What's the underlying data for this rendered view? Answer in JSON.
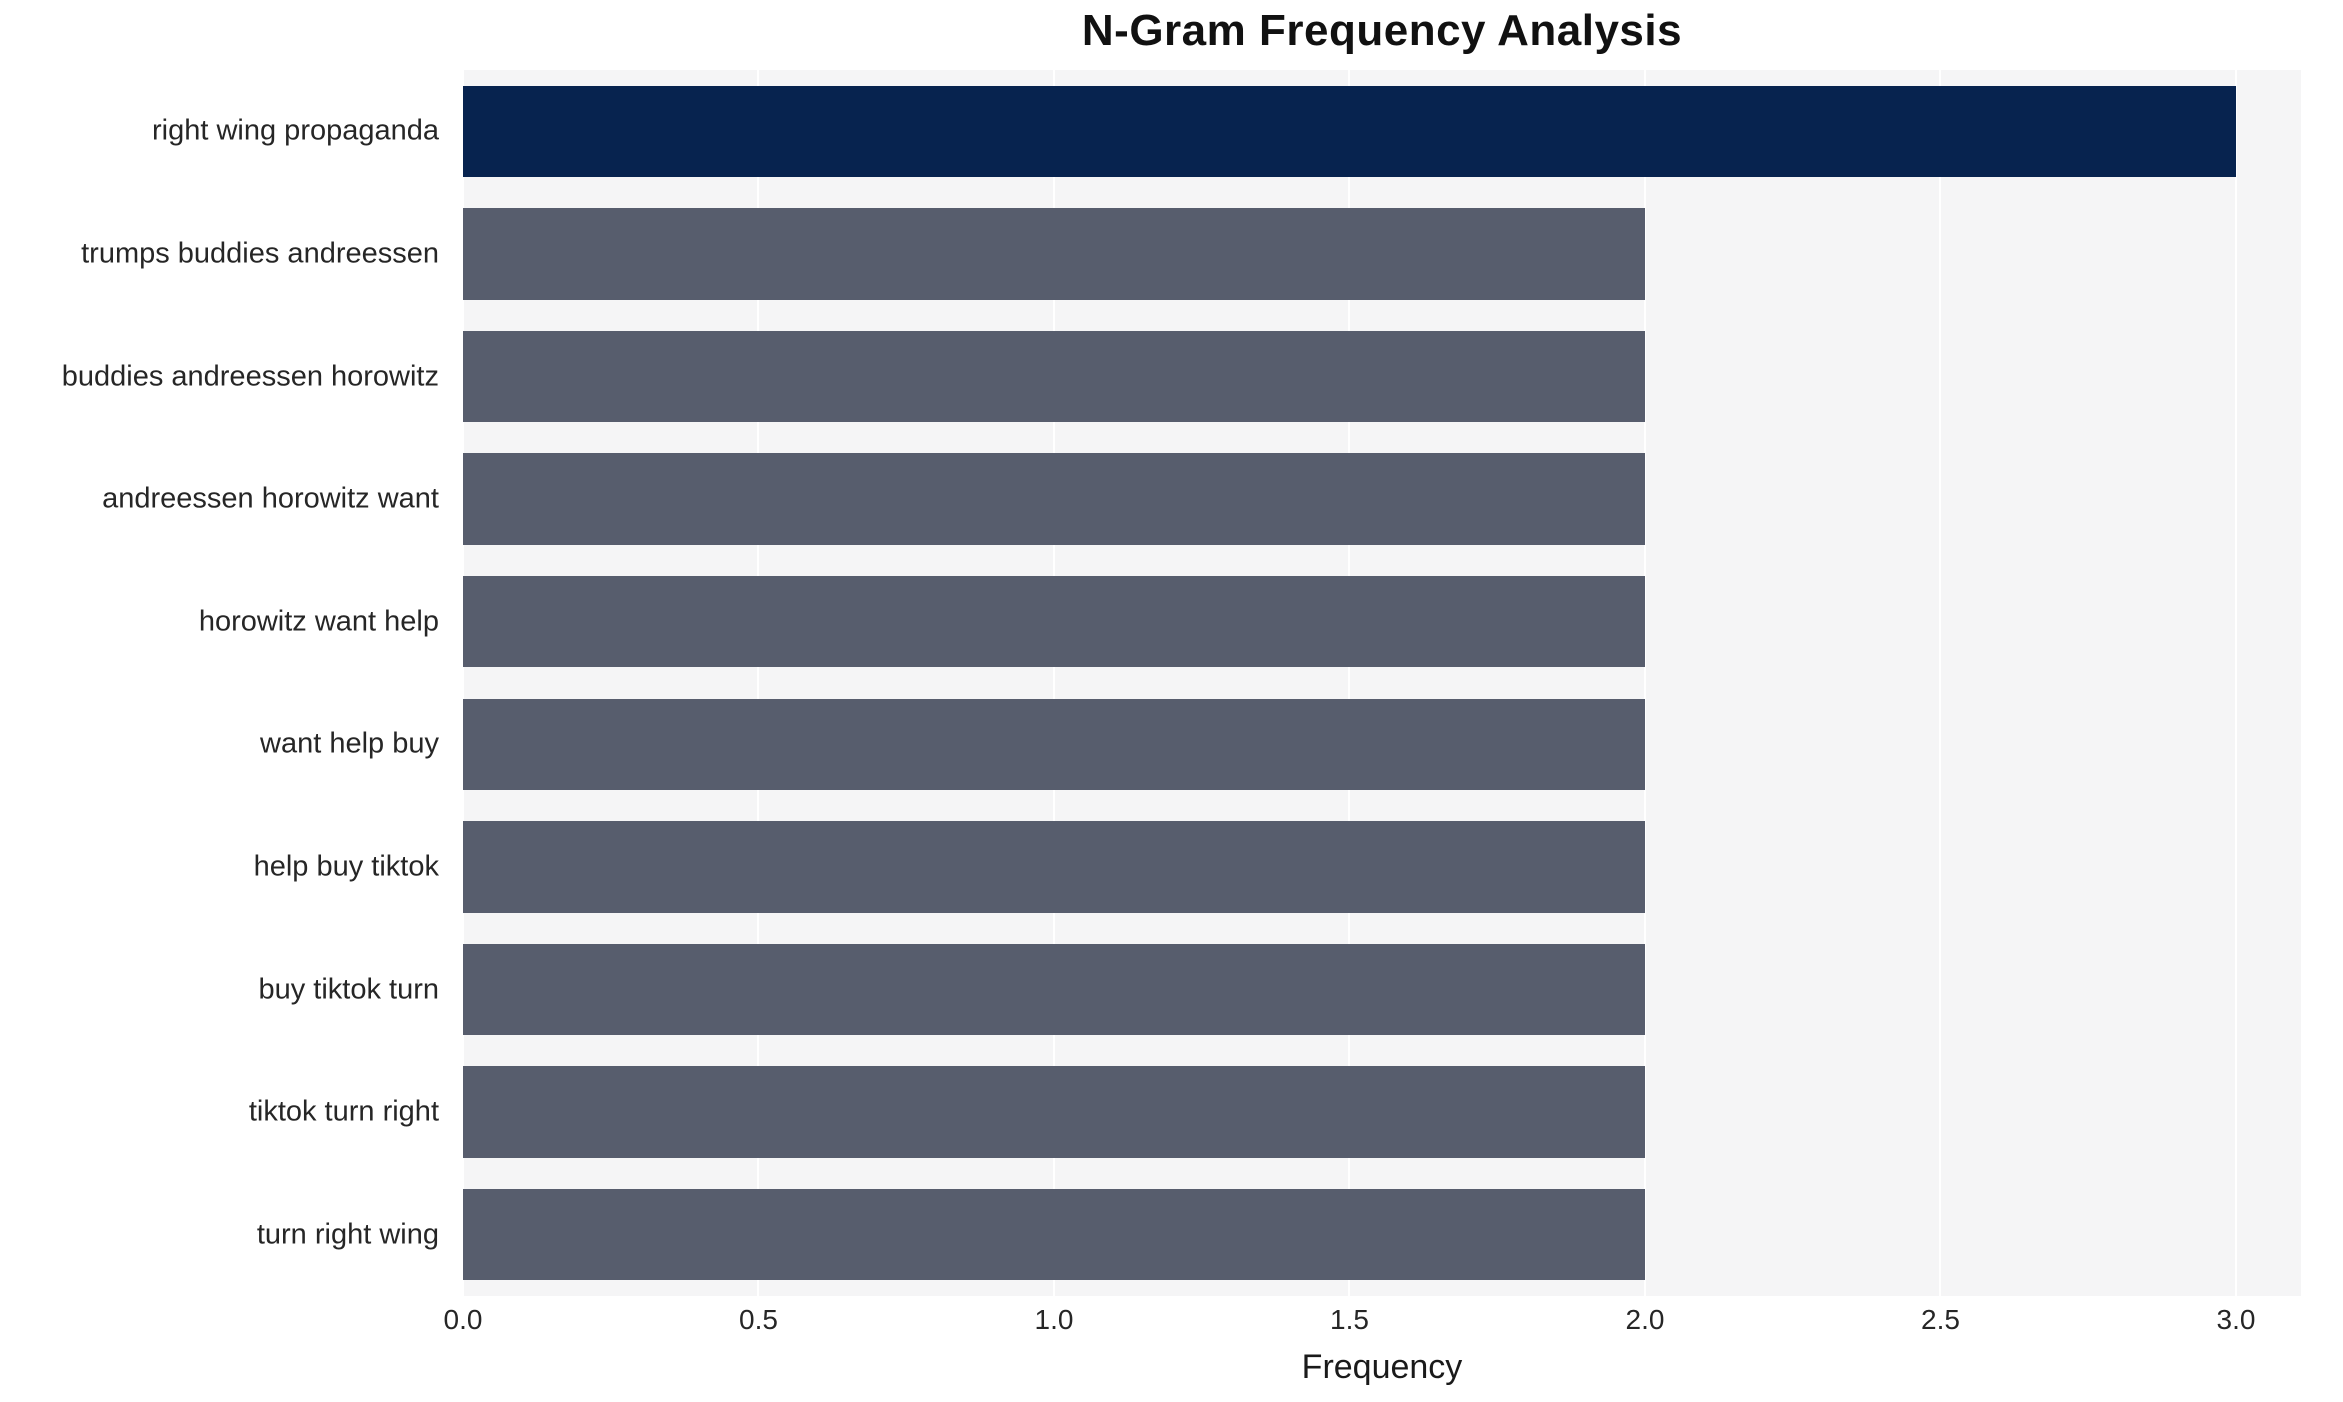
{
  "chart_data": {
    "type": "bar",
    "orientation": "horizontal",
    "title": "N-Gram Frequency Analysis",
    "xlabel": "Frequency",
    "ylabel": "",
    "categories": [
      "right wing propaganda",
      "trumps buddies andreessen",
      "buddies andreessen horowitz",
      "andreessen horowitz want",
      "horowitz want help",
      "want help buy",
      "help buy tiktok",
      "buy tiktok turn",
      "tiktok turn right",
      "turn right wing"
    ],
    "values": [
      3,
      2,
      2,
      2,
      2,
      2,
      2,
      2,
      2,
      2
    ],
    "highlight_index": 0,
    "xticks": [
      "0.0",
      "0.5",
      "1.0",
      "1.5",
      "2.0",
      "2.5",
      "3.0"
    ],
    "xtick_values": [
      0,
      0.5,
      1,
      1.5,
      2,
      2.5,
      3
    ],
    "xlim": [
      0,
      3.11
    ],
    "grid": true,
    "legend": "none",
    "colors": {
      "highlight_bar": "#07234f",
      "default_bar": "#575d6d",
      "plot_background": "#f5f5f6",
      "gridline": "#ffffff",
      "text": "#262626"
    }
  }
}
